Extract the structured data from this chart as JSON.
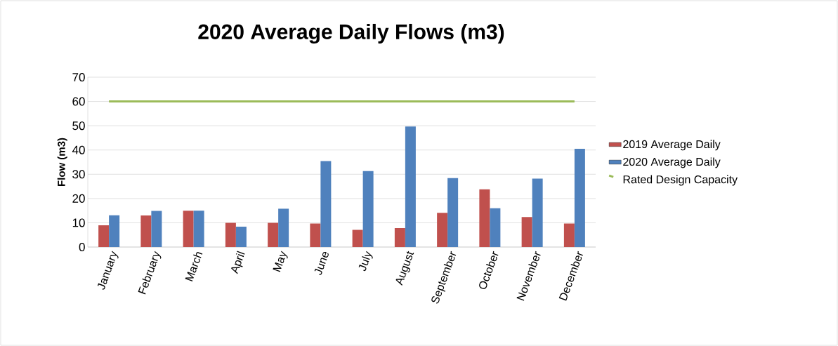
{
  "chart_data": {
    "type": "bar",
    "title": "2020 Average Daily Flows (m3)",
    "ylabel": "Flow (m3)",
    "categories": [
      "January",
      "February",
      "March",
      "April",
      "May",
      "June",
      "July",
      "August",
      "September",
      "October",
      "November",
      "December"
    ],
    "series": [
      {
        "name": "2019 Average Daily",
        "color": "#c0504d",
        "values": [
          9,
          13,
          15,
          10,
          10,
          9.7,
          7.1,
          7.8,
          14.1,
          23.8,
          12.4,
          9.7
        ]
      },
      {
        "name": "2020 Average Daily",
        "color": "#4f81bd",
        "values": [
          13.1,
          14.9,
          15,
          8.4,
          15.8,
          35.4,
          31.3,
          49.7,
          28.4,
          16,
          28.2,
          40.5
        ]
      },
      {
        "name": "Rated Design Capacity",
        "type": "line",
        "color": "#9bbb59",
        "values": [
          60,
          60,
          60,
          60,
          60,
          60,
          60,
          60,
          60,
          60,
          60,
          60
        ]
      }
    ],
    "ylim": [
      0,
      70
    ],
    "yticks": [
      0,
      10,
      20,
      30,
      40,
      50,
      60,
      70
    ],
    "grid": "y",
    "legend": "right",
    "marker": "none"
  }
}
